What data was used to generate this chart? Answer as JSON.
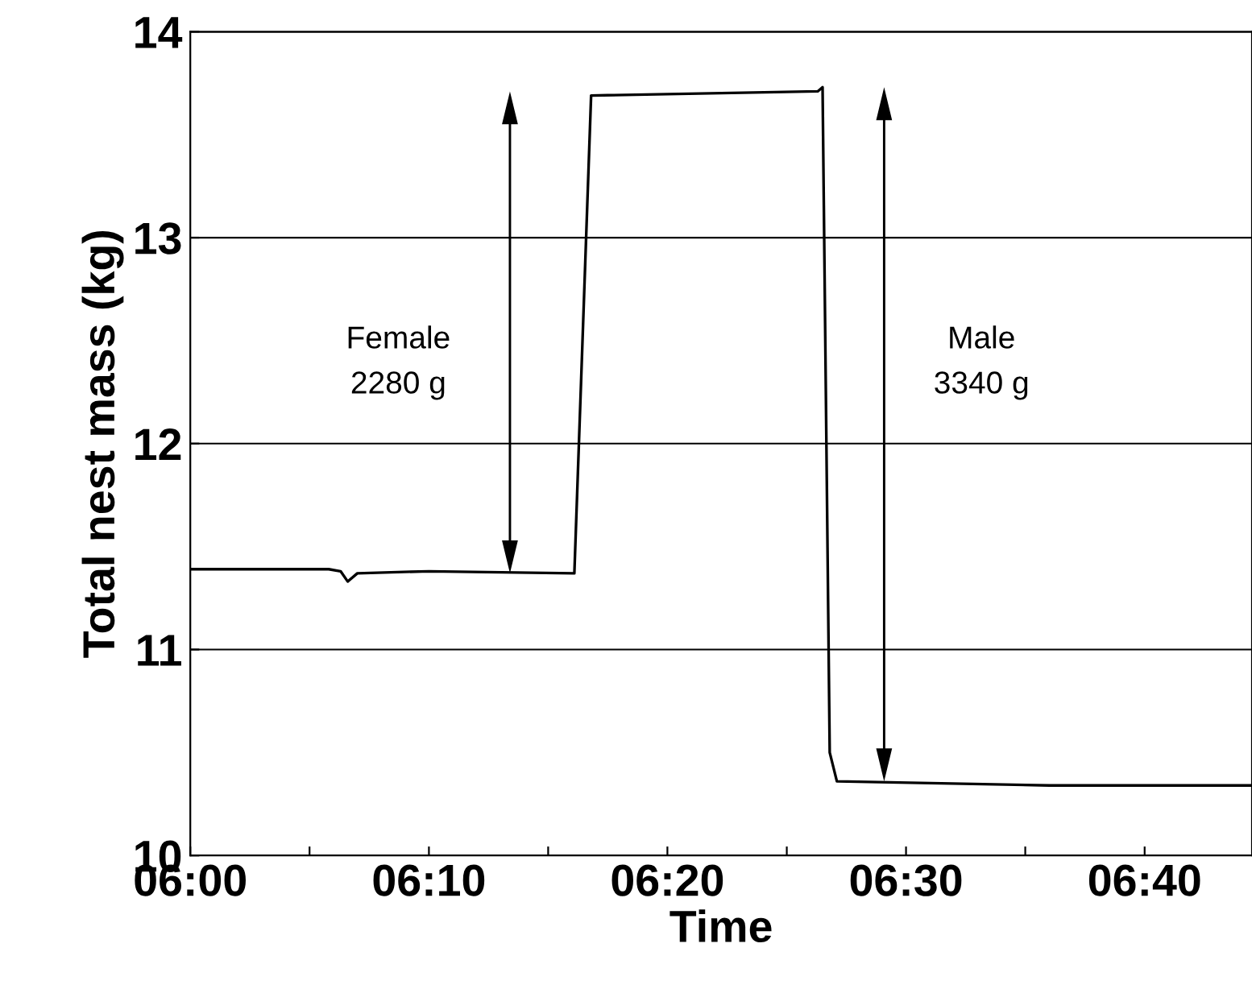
{
  "chart_data": {
    "type": "line",
    "xlabel": "Time",
    "ylabel": "Total nest mass (kg)",
    "x": [
      6.0,
      6.0967,
      6.105,
      6.11,
      6.1167,
      6.1667,
      6.2683,
      6.28,
      6.4383,
      6.4417,
      6.4467,
      6.4517,
      6.6,
      6.7417
    ],
    "series": [
      {
        "color": "#000000",
        "values": [
          11.39,
          11.39,
          11.38,
          11.33,
          11.37,
          11.38,
          11.37,
          13.69,
          13.71,
          13.73,
          10.5,
          10.36,
          10.34,
          10.34
        ]
      }
    ],
    "xlim": [
      6.0,
      6.7417
    ],
    "xticks": [
      {
        "value": 6.0,
        "label": "06:00"
      },
      {
        "value": 6.0833,
        "label": null
      },
      {
        "value": 6.1667,
        "label": "06:10"
      },
      {
        "value": 6.25,
        "label": null
      },
      {
        "value": 6.3333,
        "label": "06:20"
      },
      {
        "value": 6.4167,
        "label": null
      },
      {
        "value": 6.5,
        "label": "06:30"
      },
      {
        "value": 6.5833,
        "label": null
      },
      {
        "value": 6.6667,
        "label": "06:40"
      }
    ],
    "ylim": [
      10,
      14
    ],
    "yticks": [
      10,
      11,
      12,
      13,
      14
    ],
    "grid": "y",
    "legend": false,
    "marker": "none",
    "line_style": "solid",
    "annotations": [
      "Female\n2280 g",
      "Male\n3340 g"
    ]
  }
}
